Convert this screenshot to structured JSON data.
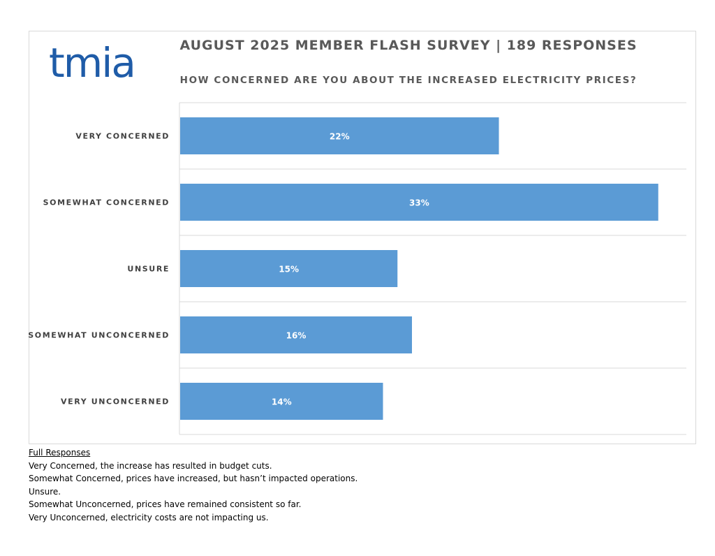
{
  "logo": {
    "text": "tmia",
    "color": "#1f5ca8"
  },
  "title": "AUGUST 2025 MEMBER FLASH SURVEY | 189 RESPONSES",
  "subtitle": "HOW CONCERNED ARE YOU ABOUT THE INCREASED ELECTRICITY PRICES?",
  "chart_data": {
    "type": "bar",
    "orientation": "horizontal",
    "title": "AUGUST 2025 MEMBER FLASH SURVEY | 189 RESPONSES",
    "subtitle": "HOW CONCERNED ARE YOU ABOUT THE INCREASED ELECTRICITY PRICES?",
    "categories": [
      "VERY CONCERNED",
      "SOMEWHAT CONCERNED",
      "UNSURE",
      "SOMEWHAT UNCONCERNED",
      "VERY UNCONCERNED"
    ],
    "values": [
      22,
      33,
      15,
      16,
      14
    ],
    "value_labels": [
      "22%",
      "33%",
      "15%",
      "16%",
      "14%"
    ],
    "xlim": [
      0,
      35
    ],
    "bar_color": "#5b9bd5",
    "grid": true,
    "legend": "none"
  },
  "notes": {
    "heading": "Full Responses",
    "lines": [
      "Very Concerned, the increase has resulted in budget cuts.",
      "Somewhat Concerned, prices have increased, but hasn’t impacted operations.",
      "Unsure.",
      "Somewhat Unconcerned, prices have remained consistent so far.",
      "Very Unconcerned, electricity costs are not impacting us."
    ]
  }
}
